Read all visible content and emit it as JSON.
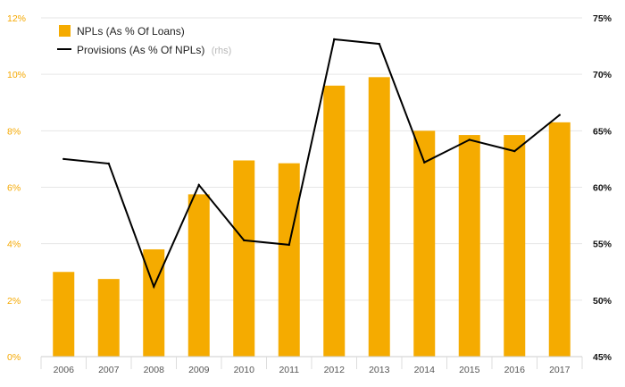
{
  "chart_data": {
    "type": "bar",
    "categories": [
      "2006",
      "2007",
      "2008",
      "2009",
      "2010",
      "2011",
      "2012",
      "2013",
      "2014",
      "2015",
      "2016",
      "2017"
    ],
    "series": [
      {
        "name": "NPLs (As % Of Loans)",
        "type": "bar",
        "axis": "left",
        "color": "#f5ab00",
        "values": [
          3.0,
          2.75,
          3.8,
          5.75,
          6.95,
          6.85,
          9.6,
          9.9,
          8.0,
          7.85,
          7.85,
          8.3
        ]
      },
      {
        "name": "Provisions (As % Of NPLs)",
        "name_suffix": "(rhs)",
        "type": "line",
        "axis": "right",
        "color": "#000000",
        "values": [
          62.5,
          62.1,
          51.2,
          60.2,
          55.3,
          54.9,
          73.1,
          72.7,
          62.2,
          64.2,
          63.2,
          66.4
        ]
      }
    ],
    "y_left": {
      "ylim": [
        0,
        12
      ],
      "ticks": [
        "0%",
        "2%",
        "4%",
        "6%",
        "8%",
        "10%",
        "12%"
      ],
      "color": "#f5a800"
    },
    "y_right": {
      "ylim": [
        45,
        75
      ],
      "ticks": [
        "45%",
        "50%",
        "55%",
        "60%",
        "65%",
        "70%",
        "75%"
      ],
      "color": "#111111"
    },
    "grid": true,
    "legend_position": "top-left"
  }
}
